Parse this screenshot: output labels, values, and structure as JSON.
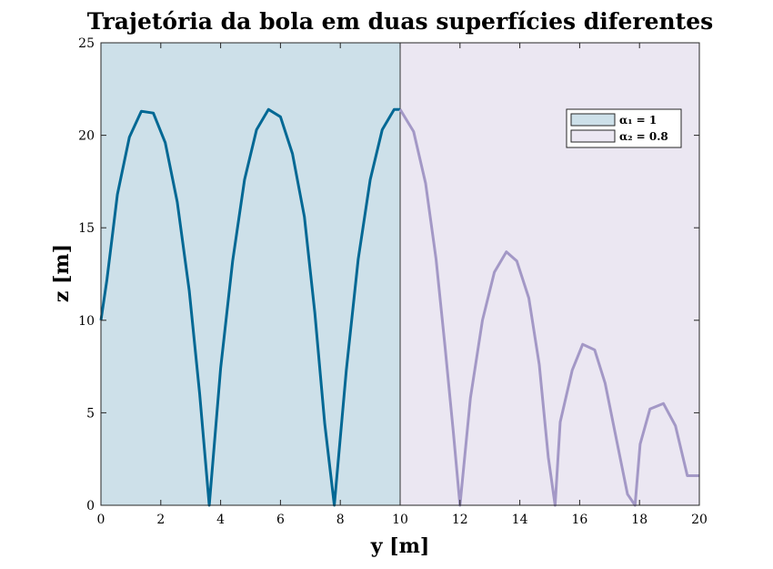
{
  "chart_data": {
    "type": "line",
    "title": "Trajetória da bola em duas superfícies diferentes",
    "xlabel": "y  [m]",
    "ylabel": "z  [m]",
    "xlim": [
      0,
      20
    ],
    "ylim": [
      0,
      25
    ],
    "xticks": [
      "0",
      "2",
      "4",
      "6",
      "8",
      "10",
      "12",
      "14",
      "16",
      "18",
      "20"
    ],
    "yticks": [
      "0",
      "5",
      "10",
      "15",
      "20",
      "25"
    ],
    "grid": false,
    "legend_position": "top-right",
    "regions": [
      {
        "label": "α₁ = 1",
        "x_range": [
          0,
          10
        ],
        "color": "#cde0e9"
      },
      {
        "label": "α₂ = 0.8",
        "x_range": [
          10,
          20
        ],
        "color": "#ebe7f2"
      }
    ],
    "series": [
      {
        "color": "#006894",
        "x": [
          0,
          0.2,
          0.55,
          0.95,
          1.35,
          1.75,
          2.15,
          2.55,
          2.95,
          3.3,
          3.62,
          4.0,
          4.4,
          4.8,
          5.2,
          5.6,
          6.0,
          6.4,
          6.8,
          7.15,
          7.48,
          7.8,
          8.2,
          8.6,
          9.0,
          9.4,
          9.8,
          10.0
        ],
        "y": [
          10,
          12.2,
          16.8,
          19.9,
          21.3,
          21.2,
          19.6,
          16.4,
          11.6,
          6.0,
          0,
          7.4,
          13.2,
          17.6,
          20.3,
          21.4,
          21.0,
          19.0,
          15.6,
          10.4,
          4.4,
          0,
          7.3,
          13.3,
          17.6,
          20.3,
          21.4,
          21.4
        ]
      },
      {
        "color": "#a398c6",
        "x": [
          10.0,
          10.45,
          10.85,
          11.2,
          11.5,
          11.78,
          12.0,
          12.35,
          12.75,
          13.15,
          13.55,
          13.9,
          14.3,
          14.65,
          14.95,
          15.18,
          15.35,
          15.75,
          16.1,
          16.5,
          16.85,
          17.25,
          17.6,
          17.85,
          18.02,
          18.35,
          18.8,
          19.2,
          19.6,
          20.0
        ],
        "y": [
          21.4,
          20.2,
          17.4,
          13.3,
          8.6,
          3.9,
          0,
          5.8,
          10.0,
          12.6,
          13.7,
          13.2,
          11.2,
          7.6,
          2.6,
          0,
          4.5,
          7.3,
          8.7,
          8.4,
          6.6,
          3.4,
          0.6,
          0,
          3.3,
          5.2,
          5.5,
          4.3,
          1.6,
          1.6
        ]
      }
    ]
  }
}
